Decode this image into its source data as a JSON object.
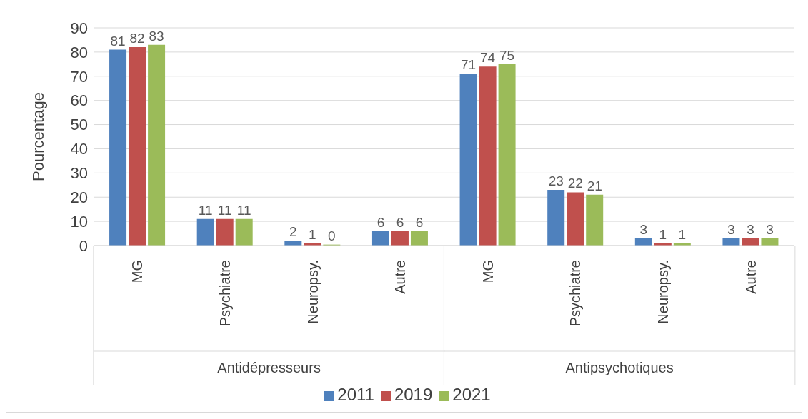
{
  "chart_data": {
    "type": "bar",
    "ylabel": "Pourcentage",
    "categories": [
      "MG",
      "Psychiatre",
      "Neuropsy.",
      "Autre",
      "MG",
      "Psychiatre",
      "Neuropsy.",
      "Autre"
    ],
    "annotations": [
      "Antidépresseurs",
      "Antipsychotiques"
    ],
    "series": [
      {
        "name": "2011",
        "color": "#4f81bd",
        "values": [
          81,
          11,
          2,
          6,
          71,
          23,
          3,
          3
        ],
        "value_labels": [
          "81",
          "11",
          "2",
          "6",
          "71",
          "23",
          "3",
          "3"
        ]
      },
      {
        "name": "2019",
        "color": "#c0504d",
        "values": [
          82,
          11,
          1,
          6,
          74,
          22,
          1,
          3
        ],
        "value_labels": [
          "82",
          "11",
          "1",
          "6",
          "74",
          "22",
          "1",
          "3"
        ]
      },
      {
        "name": "2021",
        "color": "#9bbb59",
        "values": [
          83,
          11,
          0.4,
          6,
          75,
          21,
          1,
          3
        ],
        "value_labels": [
          "83",
          "11",
          "0",
          "6",
          "75",
          "21",
          "1",
          "3"
        ]
      }
    ],
    "ylim": [
      0,
      90
    ],
    "yticks": [
      0,
      10,
      20,
      30,
      40,
      50,
      60,
      70,
      80,
      90
    ],
    "grid": "y",
    "legend": "bottom"
  }
}
